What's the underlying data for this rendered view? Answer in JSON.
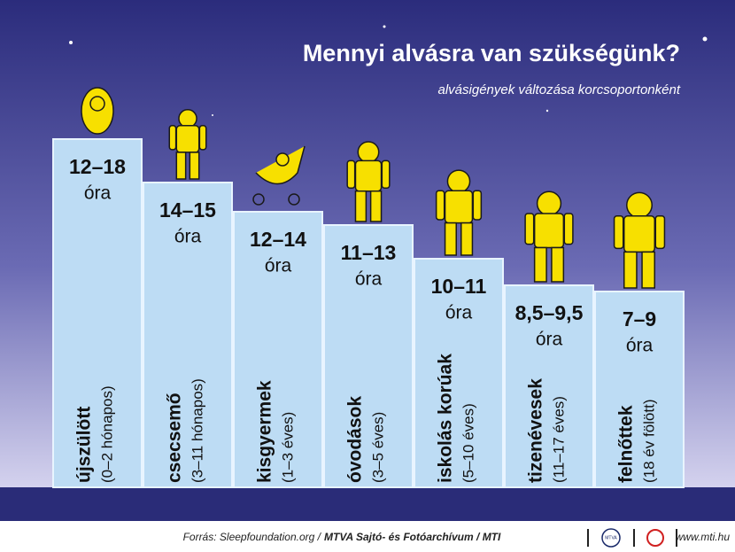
{
  "header": {
    "title": "Mennyi alvásra van szükségünk?",
    "subtitle": "alvásigények változása korcsoportonként"
  },
  "groups": [
    {
      "range": "12–18",
      "unit": "óra",
      "name": "újszülött",
      "age": "(0–2 hónapos)"
    },
    {
      "range": "14–15",
      "unit": "óra",
      "name": "csecsemő",
      "age": "(3–11 hónapos)"
    },
    {
      "range": "12–14",
      "unit": "óra",
      "name": "kisgyermek",
      "age": "(1–3 éves)"
    },
    {
      "range": "11–13",
      "unit": "óra",
      "name": "óvodások",
      "age": "(3–5 éves)"
    },
    {
      "range": "10–11",
      "unit": "óra",
      "name": "iskolás korúak",
      "age": "(5–10 éves)"
    },
    {
      "range": "8,5–9,5",
      "unit": "óra",
      "name": "tizenévesek",
      "age": "(11–17 éves)"
    },
    {
      "range": "7–9",
      "unit": "óra",
      "name": "felnőttek",
      "age": "(18 év fölött)"
    }
  ],
  "footer": {
    "source": "Forrás: Sleepfoundation.org /",
    "credit": "MTVA Sajtó- és Fotóarchívum / MTI",
    "logo": "MTVA",
    "url": "www.mti.hu"
  }
}
